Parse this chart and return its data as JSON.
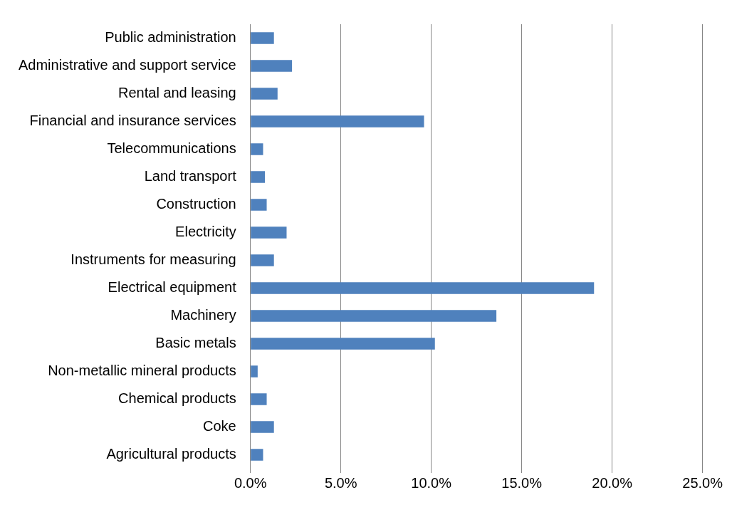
{
  "chart_data": {
    "type": "bar",
    "orientation": "horizontal",
    "categories": [
      "Public administration",
      "Administrative and support service",
      "Rental and leasing",
      "Financial and insurance services",
      "Telecommunications",
      "Land transport",
      "Construction",
      "Electricity",
      "Instruments for measuring",
      "Electrical equipment",
      "Machinery",
      "Basic metals",
      "Non-metallic mineral products",
      "Chemical products",
      "Coke",
      "Agricultural products"
    ],
    "values": [
      1.3,
      2.3,
      1.5,
      9.6,
      0.7,
      0.8,
      0.9,
      2.0,
      1.3,
      19.0,
      13.6,
      10.2,
      0.4,
      0.9,
      1.3,
      0.7
    ],
    "color": "#4f81bd",
    "xlim": [
      0,
      25
    ],
    "xticks": [
      {
        "value": 0,
        "label": "0.0%"
      },
      {
        "value": 5,
        "label": "5.0%"
      },
      {
        "value": 10,
        "label": "10.0%"
      },
      {
        "value": 15,
        "label": "15.0%"
      },
      {
        "value": 20,
        "label": "20.0%"
      },
      {
        "value": 25,
        "label": "25.0%"
      }
    ],
    "grid": "x",
    "legend": false
  }
}
